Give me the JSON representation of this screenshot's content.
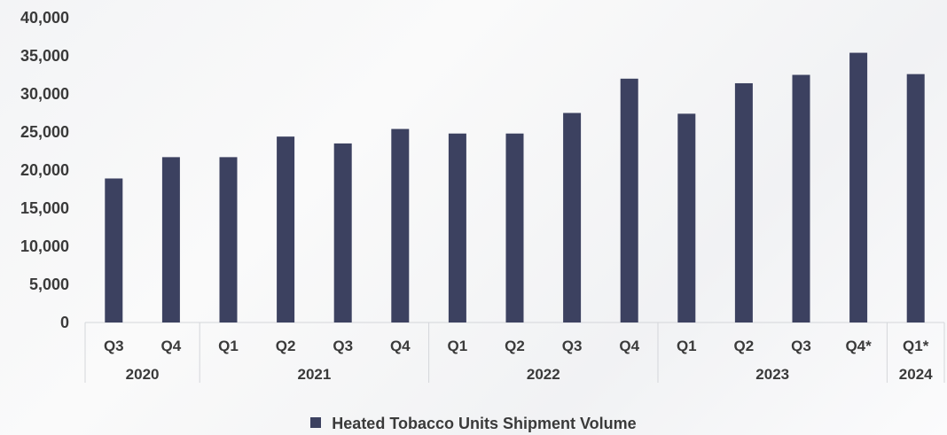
{
  "chart_data": {
    "type": "bar",
    "categories": [
      "Q3",
      "Q4",
      "Q1",
      "Q2",
      "Q3",
      "Q4",
      "Q1",
      "Q2",
      "Q3",
      "Q4",
      "Q1",
      "Q2",
      "Q3",
      "Q4*",
      "Q1*"
    ],
    "groups": [
      {
        "label": "2020",
        "count": 2
      },
      {
        "label": "2021",
        "count": 4
      },
      {
        "label": "2022",
        "count": 4
      },
      {
        "label": "2023",
        "count": 4
      },
      {
        "label": "2024",
        "count": 1
      }
    ],
    "series": [
      {
        "name": "Heated Tobacco Units Shipment Volume",
        "color": "#3c4160",
        "values": [
          18900,
          21700,
          21700,
          24400,
          23500,
          25400,
          24800,
          24800,
          27500,
          32000,
          27400,
          31400,
          32500,
          35400,
          32600
        ]
      }
    ],
    "yticks": [
      "0",
      "5,000",
      "10,000",
      "15,000",
      "20,000",
      "25,000",
      "30,000",
      "35,000",
      "40,000"
    ],
    "ylim": [
      0,
      40000
    ],
    "grid": false,
    "legend": "bottom"
  }
}
